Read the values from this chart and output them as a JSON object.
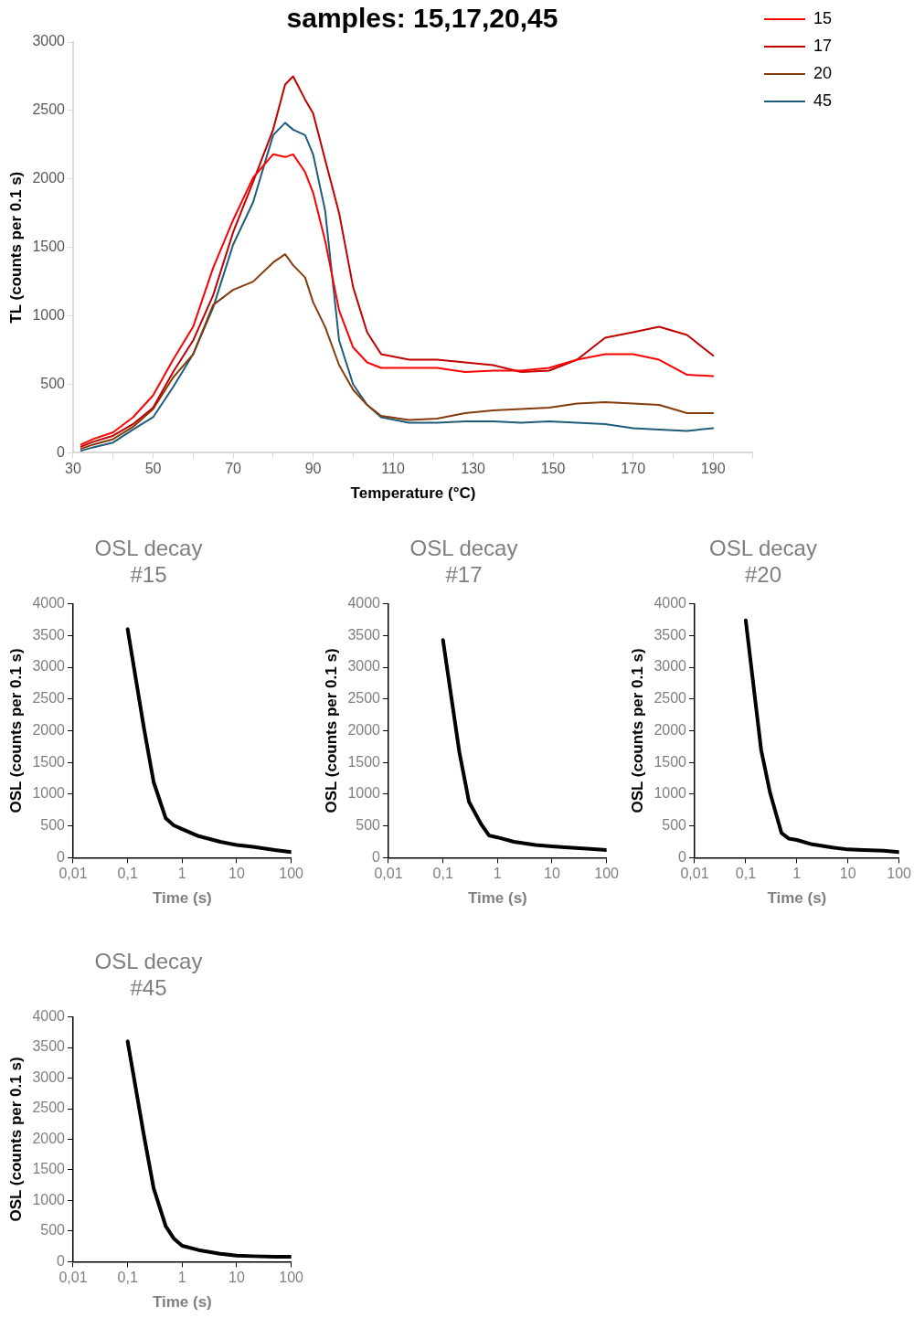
{
  "chart_data": [
    {
      "type": "line",
      "title": "samples: 15,17,20,45",
      "xlabel": "Temperature (°C)",
      "ylabel": "TL (counts per 0.1 s)",
      "legend": "top right",
      "marker": "none",
      "x": [
        32,
        35,
        40,
        45,
        50,
        55,
        60,
        65,
        70,
        75,
        80,
        83,
        85,
        88,
        90,
        93,
        96.5,
        100,
        103.5,
        107,
        114,
        121,
        128,
        135,
        142,
        149,
        156,
        163,
        170,
        176.5,
        183.5,
        190
      ],
      "series": [
        {
          "name": "15",
          "color": "#ff0000",
          "values": [
            60,
            100,
            150,
            260,
            420,
            680,
            920,
            1350,
            1700,
            2010,
            2180,
            2160,
            2180,
            2050,
            1900,
            1550,
            1040,
            770,
            660,
            620,
            620,
            620,
            590,
            600,
            600,
            620,
            680,
            720,
            720,
            680,
            570,
            560
          ]
        },
        {
          "name": "17",
          "color": "#c00000",
          "values": [
            45,
            80,
            125,
            210,
            330,
            590,
            820,
            1150,
            1610,
            1980,
            2360,
            2690,
            2750,
            2580,
            2480,
            2140,
            1750,
            1210,
            880,
            720,
            680,
            680,
            660,
            640,
            590,
            600,
            680,
            840,
            880,
            920,
            860,
            710
          ]
        },
        {
          "name": "20",
          "color": "#843c0c",
          "values": [
            30,
            60,
            100,
            190,
            320,
            550,
            720,
            1080,
            1190,
            1250,
            1390,
            1450,
            1370,
            1280,
            1100,
            920,
            640,
            460,
            350,
            270,
            240,
            250,
            290,
            310,
            320,
            330,
            360,
            370,
            360,
            350,
            290,
            290
          ]
        },
        {
          "name": "45",
          "color": "#1f5c7a",
          "values": [
            15,
            40,
            75,
            170,
            260,
            480,
            720,
            1060,
            1520,
            1830,
            2320,
            2410,
            2360,
            2320,
            2180,
            1770,
            820,
            500,
            350,
            260,
            220,
            220,
            230,
            230,
            220,
            230,
            220,
            210,
            180,
            170,
            160,
            180
          ]
        }
      ],
      "xlim": [
        30,
        200
      ],
      "xticks": [
        30,
        {
          "value": 40,
          "label": null
        },
        50,
        {
          "value": 60,
          "label": null
        },
        70,
        {
          "value": 80,
          "label": null
        },
        90,
        {
          "value": 100,
          "label": null
        },
        110,
        {
          "value": 120,
          "label": null
        },
        130,
        {
          "value": 140,
          "label": null
        },
        150,
        {
          "value": 160,
          "label": null
        },
        170,
        {
          "value": 180,
          "label": null
        },
        190,
        {
          "value": 200,
          "label": null
        }
      ],
      "ylim": [
        0,
        3000
      ],
      "yticks": [
        0,
        500,
        1000,
        1500,
        2000,
        2500,
        3000
      ]
    },
    {
      "type": "line",
      "title": "OSL decay #15",
      "xlabel": "Time (s)",
      "ylabel": "OSL (counts per 0.1 s)",
      "log": "x",
      "marker": "none",
      "x": [
        0.1,
        0.2,
        0.3,
        0.5,
        0.7,
        1,
        2,
        5,
        10,
        20,
        50,
        100
      ],
      "series": [
        {
          "color": "#000000",
          "values": [
            3600,
            2030,
            1190,
            620,
            510,
            450,
            340,
            250,
            200,
            170,
            120,
            90
          ]
        }
      ],
      "xlim": [
        0.01,
        100
      ],
      "xticks": [
        {
          "value": 0.01,
          "label": "0,01"
        },
        {
          "value": 0.1,
          "label": "0,1"
        },
        1,
        10,
        100
      ],
      "ylim": [
        0,
        4000
      ],
      "yticks": [
        0,
        500,
        1000,
        1500,
        2000,
        2500,
        3000,
        3500,
        4000
      ]
    },
    {
      "type": "line",
      "title": "OSL decay #17",
      "xlabel": "Time (s)",
      "ylabel": "OSL (counts per 0.1 s)",
      "log": "x",
      "marker": "none",
      "x": [
        0.1,
        0.2,
        0.3,
        0.5,
        0.7,
        1,
        2,
        5,
        10,
        20,
        50,
        100
      ],
      "series": [
        {
          "color": "#000000",
          "values": [
            3430,
            1660,
            880,
            530,
            350,
            320,
            250,
            200,
            180,
            160,
            140,
            120
          ]
        }
      ],
      "xlim": [
        0.01,
        100
      ],
      "xticks": [
        {
          "value": 0.01,
          "label": "0,01"
        },
        {
          "value": 0.1,
          "label": "0,1"
        },
        1,
        10,
        100
      ],
      "ylim": [
        0,
        4000
      ],
      "yticks": [
        0,
        500,
        1000,
        1500,
        2000,
        2500,
        3000,
        3500,
        4000
      ]
    },
    {
      "type": "line",
      "title": "OSL decay #20",
      "xlabel": "Time (s)",
      "ylabel": "OSL (counts per 0.1 s)",
      "log": "x",
      "marker": "none",
      "x": [
        0.1,
        0.2,
        0.3,
        0.5,
        0.7,
        1,
        2,
        5,
        10,
        20,
        50,
        100
      ],
      "series": [
        {
          "color": "#000000",
          "values": [
            3740,
            1700,
            1020,
            390,
            300,
            280,
            210,
            160,
            130,
            120,
            110,
            90
          ]
        }
      ],
      "xlim": [
        0.01,
        100
      ],
      "xticks": [
        {
          "value": 0.01,
          "label": "0,01"
        },
        {
          "value": 0.1,
          "label": "0,1"
        },
        1,
        10,
        100
      ],
      "ylim": [
        0,
        4000
      ],
      "yticks": [
        0,
        500,
        1000,
        1500,
        2000,
        2500,
        3000,
        3500,
        4000
      ]
    },
    {
      "type": "line",
      "title": "OSL decay #45",
      "xlabel": "Time (s)",
      "ylabel": "OSL (counts per 0.1 s)",
      "log": "x",
      "marker": "none",
      "x": [
        0.1,
        0.2,
        0.3,
        0.5,
        0.7,
        1,
        2,
        5,
        10,
        20,
        50,
        100
      ],
      "series": [
        {
          "color": "#000000",
          "values": [
            3600,
            2050,
            1200,
            580,
            380,
            260,
            190,
            130,
            100,
            90,
            80,
            80
          ]
        }
      ],
      "xlim": [
        0.01,
        100
      ],
      "xticks": [
        {
          "value": 0.01,
          "label": "0,01"
        },
        {
          "value": 0.1,
          "label": "0,1"
        },
        1,
        10,
        100
      ],
      "ylim": [
        0,
        4000
      ],
      "yticks": [
        0,
        500,
        1000,
        1500,
        2000,
        2500,
        3000,
        3500,
        4000
      ]
    }
  ]
}
